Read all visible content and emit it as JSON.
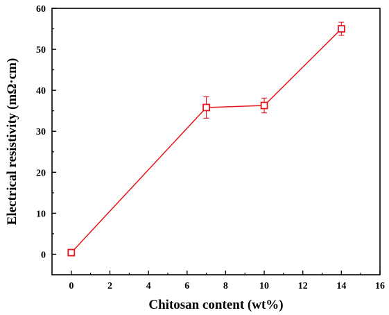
{
  "colors": {
    "series": "#e8141b",
    "axis": "#000000",
    "background": "#ffffff"
  },
  "chart_data": {
    "type": "line",
    "title": "",
    "xlabel": "Chitosan content (wt%)",
    "ylabel": "Electrical resistivity (mΩ·cm)",
    "xlim": [
      -1,
      16
    ],
    "ylim": [
      -5,
      60
    ],
    "xticks": [
      0,
      2,
      4,
      6,
      8,
      10,
      12,
      14,
      16
    ],
    "yticks": [
      0,
      10,
      20,
      30,
      40,
      50,
      60
    ],
    "grid": false,
    "legend": "none",
    "series": [
      {
        "marker": "open-square",
        "x": [
          0,
          7,
          10,
          14
        ],
        "y": [
          0.4,
          35.8,
          36.3,
          55.0
        ],
        "error": [
          0.3,
          2.6,
          1.8,
          1.6
        ]
      }
    ]
  }
}
